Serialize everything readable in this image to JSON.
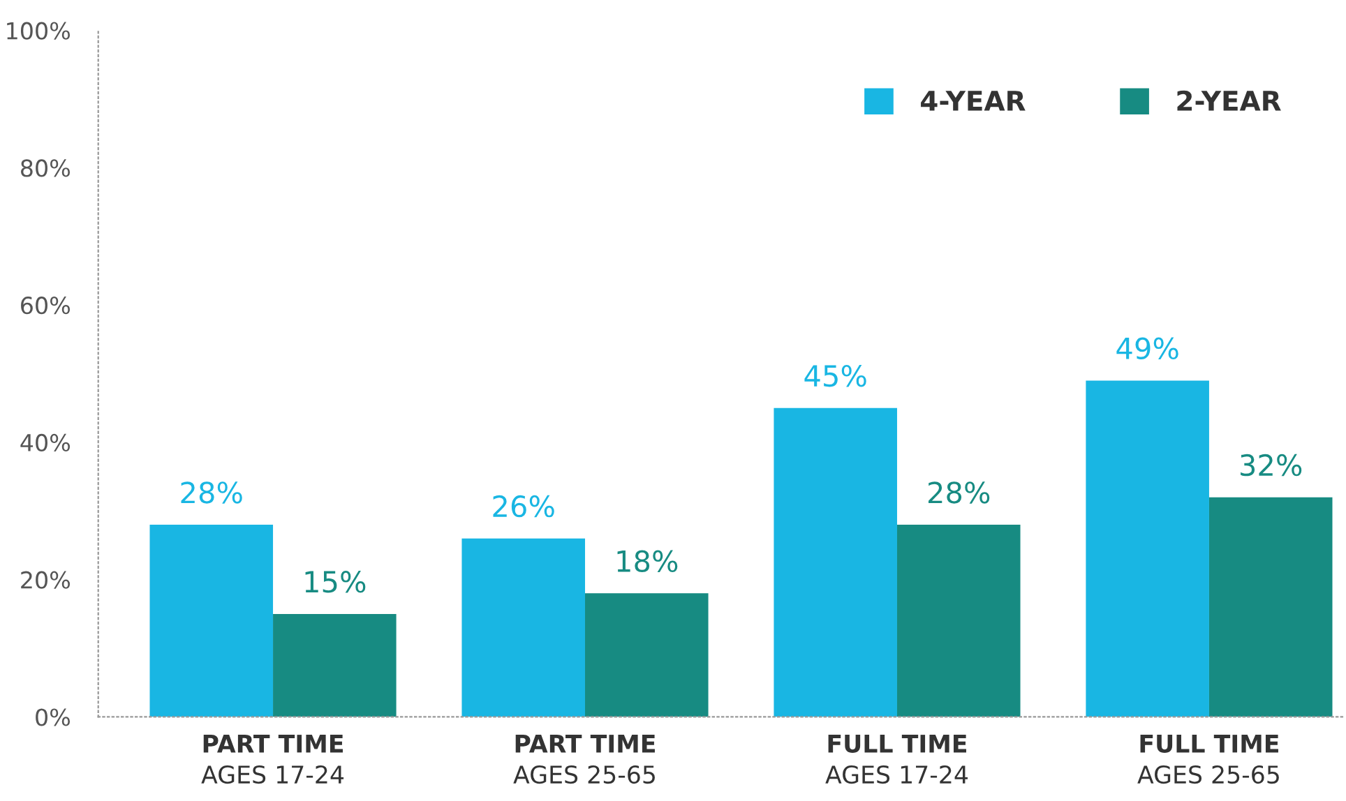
{
  "chart_data": {
    "type": "bar",
    "categories": [
      "PART TIME\nAGES 17-24",
      "PART TIME\nAGES 25-65",
      "FULL TIME\nAGES 17-24",
      "FULL TIME\nAGES 25-65"
    ],
    "series": [
      {
        "name": "4-YEAR",
        "color": "#19b6e3",
        "values": [
          28,
          26,
          45,
          49
        ],
        "value_labels": [
          "28%",
          "26%",
          "45%",
          "49%"
        ]
      },
      {
        "name": "2-YEAR",
        "color": "#178b82",
        "values": [
          15,
          18,
          28,
          32
        ],
        "value_labels": [
          "15%",
          "18%",
          "28%",
          "32%"
        ]
      }
    ],
    "ylim": [
      0,
      100
    ],
    "yticks": [
      {
        "value": 0,
        "label": "0%"
      },
      {
        "value": 20,
        "label": "20%"
      },
      {
        "value": 40,
        "label": "40%"
      },
      {
        "value": 60,
        "label": "60%"
      },
      {
        "value": 80,
        "label": "80%"
      },
      {
        "value": 100,
        "label": "100%"
      }
    ],
    "grid": false,
    "legend": "top right"
  }
}
